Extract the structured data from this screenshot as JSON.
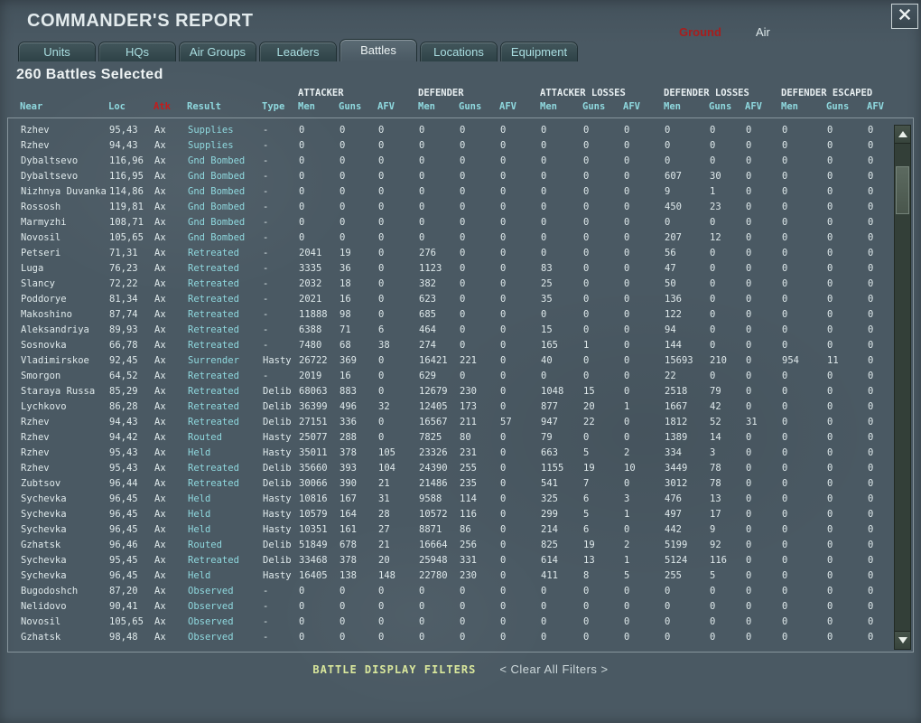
{
  "window": {
    "title": "COMMANDER'S REPORT"
  },
  "mode_toggle": {
    "ground": "Ground",
    "air": "Air"
  },
  "tabs": [
    {
      "label": "Units",
      "active": false
    },
    {
      "label": "HQs",
      "active": false
    },
    {
      "label": "Air Groups",
      "active": false
    },
    {
      "label": "Leaders",
      "active": false
    },
    {
      "label": "Battles",
      "active": true
    },
    {
      "label": "Locations",
      "active": false
    },
    {
      "label": "Equipment",
      "active": false
    }
  ],
  "selection_summary": "260 Battles Selected",
  "colors": {
    "background": "#4a5963",
    "header_cyan": "#8fd9df",
    "text_white": "#dfe9eb",
    "atk_header_red": "#c41c1c",
    "ground_red": "#a81d1d",
    "filters_yellow": "#d9e79c"
  },
  "table": {
    "group_headers": [
      "ATTACKER",
      "DEFENDER",
      "ATTACKER LOSSES",
      "DEFENDER LOSSES",
      "DEFENDER ESCAPED"
    ],
    "columns": [
      "Near",
      "Loc",
      "Atk",
      "Result",
      "Type",
      "Men",
      "Guns",
      "AFV",
      "Men",
      "Guns",
      "AFV",
      "Men",
      "Guns",
      "AFV",
      "Men",
      "Guns",
      "AFV",
      "Men",
      "Guns",
      "AFV"
    ],
    "rows": [
      [
        "Rzhev",
        "95,43",
        "Ax",
        "Supplies",
        "-",
        "0",
        "0",
        "0",
        "0",
        "0",
        "0",
        "0",
        "0",
        "0",
        "0",
        "0",
        "0",
        "0",
        "0",
        "0"
      ],
      [
        "Rzhev",
        "94,43",
        "Ax",
        "Supplies",
        "-",
        "0",
        "0",
        "0",
        "0",
        "0",
        "0",
        "0",
        "0",
        "0",
        "0",
        "0",
        "0",
        "0",
        "0",
        "0"
      ],
      [
        "Dybaltsevo",
        "116,96",
        "Ax",
        "Gnd Bombed",
        "-",
        "0",
        "0",
        "0",
        "0",
        "0",
        "0",
        "0",
        "0",
        "0",
        "0",
        "0",
        "0",
        "0",
        "0",
        "0"
      ],
      [
        "Dybaltsevo",
        "116,95",
        "Ax",
        "Gnd Bombed",
        "-",
        "0",
        "0",
        "0",
        "0",
        "0",
        "0",
        "0",
        "0",
        "0",
        "607",
        "30",
        "0",
        "0",
        "0",
        "0"
      ],
      [
        "Nizhnya Duvanka",
        "114,86",
        "Ax",
        "Gnd Bombed",
        "-",
        "0",
        "0",
        "0",
        "0",
        "0",
        "0",
        "0",
        "0",
        "0",
        "9",
        "1",
        "0",
        "0",
        "0",
        "0"
      ],
      [
        "Rossosh",
        "119,81",
        "Ax",
        "Gnd Bombed",
        "-",
        "0",
        "0",
        "0",
        "0",
        "0",
        "0",
        "0",
        "0",
        "0",
        "450",
        "23",
        "0",
        "0",
        "0",
        "0"
      ],
      [
        "Marmyzhi",
        "108,71",
        "Ax",
        "Gnd Bombed",
        "-",
        "0",
        "0",
        "0",
        "0",
        "0",
        "0",
        "0",
        "0",
        "0",
        "0",
        "0",
        "0",
        "0",
        "0",
        "0"
      ],
      [
        "Novosil",
        "105,65",
        "Ax",
        "Gnd Bombed",
        "-",
        "0",
        "0",
        "0",
        "0",
        "0",
        "0",
        "0",
        "0",
        "0",
        "207",
        "12",
        "0",
        "0",
        "0",
        "0"
      ],
      [
        "Petseri",
        "71,31",
        "Ax",
        "Retreated",
        "-",
        "2041",
        "19",
        "0",
        "276",
        "0",
        "0",
        "0",
        "0",
        "0",
        "56",
        "0",
        "0",
        "0",
        "0",
        "0"
      ],
      [
        "Luga",
        "76,23",
        "Ax",
        "Retreated",
        "-",
        "3335",
        "36",
        "0",
        "1123",
        "0",
        "0",
        "83",
        "0",
        "0",
        "47",
        "0",
        "0",
        "0",
        "0",
        "0"
      ],
      [
        "Slancy",
        "72,22",
        "Ax",
        "Retreated",
        "-",
        "2032",
        "18",
        "0",
        "382",
        "0",
        "0",
        "25",
        "0",
        "0",
        "50",
        "0",
        "0",
        "0",
        "0",
        "0"
      ],
      [
        "Poddorye",
        "81,34",
        "Ax",
        "Retreated",
        "-",
        "2021",
        "16",
        "0",
        "623",
        "0",
        "0",
        "35",
        "0",
        "0",
        "136",
        "0",
        "0",
        "0",
        "0",
        "0"
      ],
      [
        "Makoshino",
        "87,74",
        "Ax",
        "Retreated",
        "-",
        "11888",
        "98",
        "0",
        "685",
        "0",
        "0",
        "0",
        "0",
        "0",
        "122",
        "0",
        "0",
        "0",
        "0",
        "0"
      ],
      [
        "Aleksandriya",
        "89,93",
        "Ax",
        "Retreated",
        "-",
        "6388",
        "71",
        "6",
        "464",
        "0",
        "0",
        "15",
        "0",
        "0",
        "94",
        "0",
        "0",
        "0",
        "0",
        "0"
      ],
      [
        "Sosnovka",
        "66,78",
        "Ax",
        "Retreated",
        "-",
        "7480",
        "68",
        "38",
        "274",
        "0",
        "0",
        "165",
        "1",
        "0",
        "144",
        "0",
        "0",
        "0",
        "0",
        "0"
      ],
      [
        "Vladimirskoe",
        "92,45",
        "Ax",
        "Surrender",
        "Hasty",
        "26722",
        "369",
        "0",
        "16421",
        "221",
        "0",
        "40",
        "0",
        "0",
        "15693",
        "210",
        "0",
        "954",
        "11",
        "0"
      ],
      [
        "Smorgon",
        "64,52",
        "Ax",
        "Retreated",
        "-",
        "2019",
        "16",
        "0",
        "629",
        "0",
        "0",
        "0",
        "0",
        "0",
        "22",
        "0",
        "0",
        "0",
        "0",
        "0"
      ],
      [
        "Staraya Russa",
        "85,29",
        "Ax",
        "Retreated",
        "Delib",
        "68063",
        "883",
        "0",
        "12679",
        "230",
        "0",
        "1048",
        "15",
        "0",
        "2518",
        "79",
        "0",
        "0",
        "0",
        "0"
      ],
      [
        "Lychkovo",
        "86,28",
        "Ax",
        "Retreated",
        "Delib",
        "36399",
        "496",
        "32",
        "12405",
        "173",
        "0",
        "877",
        "20",
        "1",
        "1667",
        "42",
        "0",
        "0",
        "0",
        "0"
      ],
      [
        "Rzhev",
        "94,43",
        "Ax",
        "Retreated",
        "Delib",
        "27151",
        "336",
        "0",
        "16567",
        "211",
        "57",
        "947",
        "22",
        "0",
        "1812",
        "52",
        "31",
        "0",
        "0",
        "0"
      ],
      [
        "Rzhev",
        "94,42",
        "Ax",
        "Routed",
        "Hasty",
        "25077",
        "288",
        "0",
        "7825",
        "80",
        "0",
        "79",
        "0",
        "0",
        "1389",
        "14",
        "0",
        "0",
        "0",
        "0"
      ],
      [
        "Rzhev",
        "95,43",
        "Ax",
        "Held",
        "Hasty",
        "35011",
        "378",
        "105",
        "23326",
        "231",
        "0",
        "663",
        "5",
        "2",
        "334",
        "3",
        "0",
        "0",
        "0",
        "0"
      ],
      [
        "Rzhev",
        "95,43",
        "Ax",
        "Retreated",
        "Delib",
        "35660",
        "393",
        "104",
        "24390",
        "255",
        "0",
        "1155",
        "19",
        "10",
        "3449",
        "78",
        "0",
        "0",
        "0",
        "0"
      ],
      [
        "Zubtsov",
        "96,44",
        "Ax",
        "Retreated",
        "Delib",
        "30066",
        "390",
        "21",
        "21486",
        "235",
        "0",
        "541",
        "7",
        "0",
        "3012",
        "78",
        "0",
        "0",
        "0",
        "0"
      ],
      [
        "Sychevka",
        "96,45",
        "Ax",
        "Held",
        "Hasty",
        "10816",
        "167",
        "31",
        "9588",
        "114",
        "0",
        "325",
        "6",
        "3",
        "476",
        "13",
        "0",
        "0",
        "0",
        "0"
      ],
      [
        "Sychevka",
        "96,45",
        "Ax",
        "Held",
        "Hasty",
        "10579",
        "164",
        "28",
        "10572",
        "116",
        "0",
        "299",
        "5",
        "1",
        "497",
        "17",
        "0",
        "0",
        "0",
        "0"
      ],
      [
        "Sychevka",
        "96,45",
        "Ax",
        "Held",
        "Hasty",
        "10351",
        "161",
        "27",
        "8871",
        "86",
        "0",
        "214",
        "6",
        "0",
        "442",
        "9",
        "0",
        "0",
        "0",
        "0"
      ],
      [
        "Gzhatsk",
        "96,46",
        "Ax",
        "Routed",
        "Delib",
        "51849",
        "678",
        "21",
        "16664",
        "256",
        "0",
        "825",
        "19",
        "2",
        "5199",
        "92",
        "0",
        "0",
        "0",
        "0"
      ],
      [
        "Sychevka",
        "95,45",
        "Ax",
        "Retreated",
        "Delib",
        "33468",
        "378",
        "20",
        "25948",
        "331",
        "0",
        "614",
        "13",
        "1",
        "5124",
        "116",
        "0",
        "0",
        "0",
        "0"
      ],
      [
        "Sychevka",
        "96,45",
        "Ax",
        "Held",
        "Hasty",
        "16405",
        "138",
        "148",
        "22780",
        "230",
        "0",
        "411",
        "8",
        "5",
        "255",
        "5",
        "0",
        "0",
        "0",
        "0"
      ],
      [
        "Bugodoshch",
        "87,20",
        "Ax",
        "Observed",
        "-",
        "0",
        "0",
        "0",
        "0",
        "0",
        "0",
        "0",
        "0",
        "0",
        "0",
        "0",
        "0",
        "0",
        "0",
        "0"
      ],
      [
        "Nelidovo",
        "90,41",
        "Ax",
        "Observed",
        "-",
        "0",
        "0",
        "0",
        "0",
        "0",
        "0",
        "0",
        "0",
        "0",
        "0",
        "0",
        "0",
        "0",
        "0",
        "0"
      ],
      [
        "Novosil",
        "105,65",
        "Ax",
        "Observed",
        "-",
        "0",
        "0",
        "0",
        "0",
        "0",
        "0",
        "0",
        "0",
        "0",
        "0",
        "0",
        "0",
        "0",
        "0",
        "0"
      ],
      [
        "Gzhatsk",
        "98,48",
        "Ax",
        "Observed",
        "-",
        "0",
        "0",
        "0",
        "0",
        "0",
        "0",
        "0",
        "0",
        "0",
        "0",
        "0",
        "0",
        "0",
        "0",
        "0"
      ]
    ]
  },
  "footer": {
    "filters_label": "BATTLE DISPLAY FILTERS",
    "clear_label": "< Clear All Filters >"
  }
}
